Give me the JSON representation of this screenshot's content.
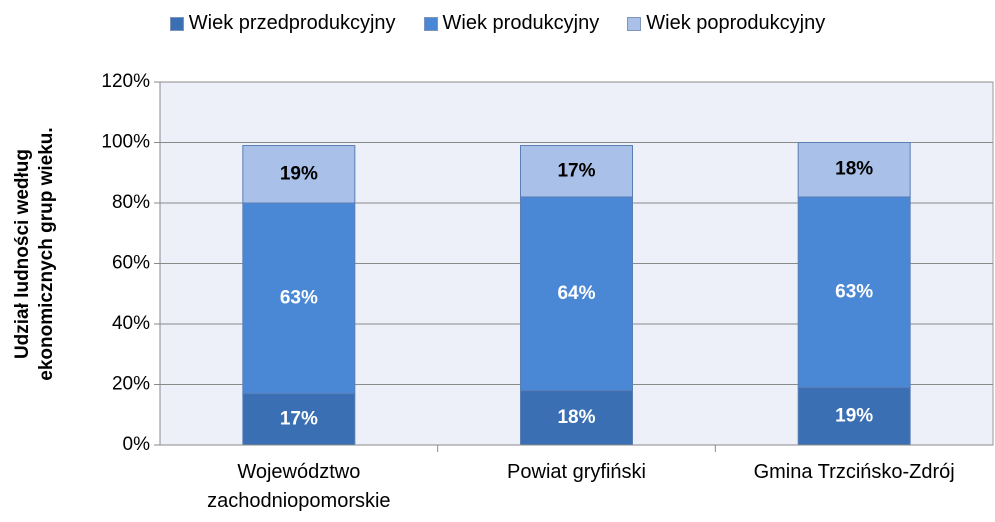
{
  "chart_data": {
    "type": "stacked_bar",
    "y_axis_label": "Udział ludności według ekonomicznych grup wieku.",
    "categories": [
      "Województwo zachodniopomorskie",
      "Powiat gryfiński",
      "Gmina Trzcińsko-Zdrój"
    ],
    "series": [
      {
        "name": "Wiek przedprodukcyjny",
        "color": "#3b6fb3",
        "values": [
          17,
          18,
          19
        ],
        "value_labels": [
          "17%",
          "18%",
          "19%"
        ]
      },
      {
        "name": "Wiek produkcyjny",
        "color": "#4a88d6",
        "values": [
          63,
          64,
          63
        ],
        "value_labels": [
          "63%",
          "64%",
          "63%"
        ]
      },
      {
        "name": "Wiek poprodukcyjny",
        "color": "#a9c0e8",
        "values": [
          19,
          17,
          18
        ],
        "value_labels": [
          "19%",
          "17%",
          "18%"
        ]
      }
    ],
    "ylim": [
      0,
      120
    ],
    "yticks": [
      {
        "value": 0,
        "label": "0%"
      },
      {
        "value": 20,
        "label": "20%"
      },
      {
        "value": 40,
        "label": "40%"
      },
      {
        "value": 60,
        "label": "60%"
      },
      {
        "value": 80,
        "label": "80%"
      },
      {
        "value": 100,
        "label": "100%"
      },
      {
        "value": 120,
        "label": "120%"
      }
    ],
    "grid": true,
    "legend": "top"
  }
}
